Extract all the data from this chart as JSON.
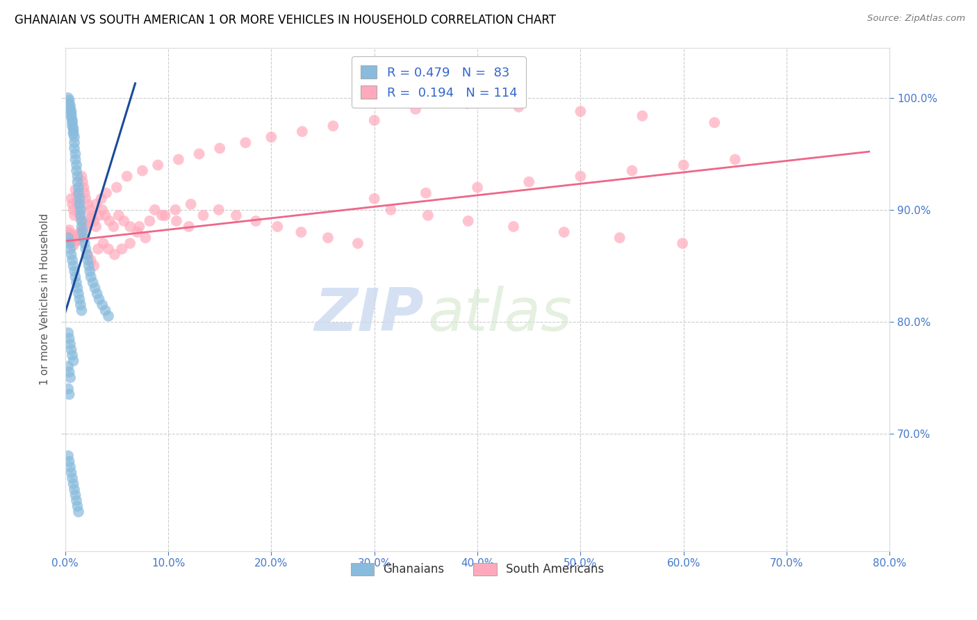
{
  "title": "GHANAIAN VS SOUTH AMERICAN 1 OR MORE VEHICLES IN HOUSEHOLD CORRELATION CHART",
  "source": "Source: ZipAtlas.com",
  "ylabel": "1 or more Vehicles in Household",
  "xlim": [
    0.0,
    0.8
  ],
  "ylim": [
    0.595,
    1.045
  ],
  "xtick_labels": [
    "0.0%",
    "10.0%",
    "20.0%",
    "30.0%",
    "40.0%",
    "50.0%",
    "60.0%",
    "70.0%",
    "80.0%"
  ],
  "xtick_vals": [
    0.0,
    0.1,
    0.2,
    0.3,
    0.4,
    0.5,
    0.6,
    0.7,
    0.8
  ],
  "ytick_labels": [
    "70.0%",
    "80.0%",
    "90.0%",
    "100.0%"
  ],
  "ytick_vals": [
    0.7,
    0.8,
    0.9,
    1.0
  ],
  "blue_R": 0.479,
  "blue_N": 83,
  "pink_R": 0.194,
  "pink_N": 114,
  "blue_color": "#88BBDD",
  "pink_color": "#FFAABC",
  "blue_line_color": "#1A4A9A",
  "pink_line_color": "#EE6688",
  "legend_label_blue": "Ghanaians",
  "legend_label_pink": "South Americans",
  "watermark_zip": "ZIP",
  "watermark_atlas": "atlas",
  "blue_line_x0": 0.0,
  "blue_line_y0": 0.808,
  "blue_line_x1": 0.068,
  "blue_line_y1": 1.013,
  "pink_line_x0": 0.0,
  "pink_line_y0": 0.872,
  "pink_line_x1": 0.78,
  "pink_line_y1": 0.952,
  "blue_x": [
    0.003,
    0.004,
    0.004,
    0.005,
    0.005,
    0.006,
    0.006,
    0.006,
    0.007,
    0.007,
    0.007,
    0.008,
    0.008,
    0.008,
    0.009,
    0.009,
    0.009,
    0.01,
    0.01,
    0.011,
    0.011,
    0.012,
    0.012,
    0.013,
    0.013,
    0.014,
    0.014,
    0.015,
    0.015,
    0.016,
    0.016,
    0.017,
    0.018,
    0.019,
    0.02,
    0.021,
    0.022,
    0.023,
    0.024,
    0.025,
    0.027,
    0.029,
    0.031,
    0.033,
    0.036,
    0.039,
    0.042,
    0.003,
    0.004,
    0.005,
    0.006,
    0.007,
    0.008,
    0.009,
    0.01,
    0.011,
    0.012,
    0.013,
    0.014,
    0.015,
    0.016,
    0.003,
    0.004,
    0.005,
    0.006,
    0.007,
    0.008,
    0.003,
    0.004,
    0.005,
    0.003,
    0.004,
    0.003,
    0.004,
    0.005,
    0.006,
    0.007,
    0.008,
    0.009,
    0.01,
    0.011,
    0.012,
    0.013
  ],
  "blue_y": [
    1.0,
    0.998,
    0.995,
    0.993,
    0.99,
    0.988,
    0.985,
    0.983,
    0.98,
    0.978,
    0.975,
    0.973,
    0.97,
    0.968,
    0.965,
    0.96,
    0.955,
    0.95,
    0.945,
    0.94,
    0.935,
    0.93,
    0.925,
    0.92,
    0.915,
    0.91,
    0.905,
    0.9,
    0.895,
    0.89,
    0.885,
    0.88,
    0.875,
    0.87,
    0.865,
    0.86,
    0.855,
    0.85,
    0.845,
    0.84,
    0.835,
    0.83,
    0.825,
    0.82,
    0.815,
    0.81,
    0.805,
    0.875,
    0.87,
    0.865,
    0.86,
    0.855,
    0.85,
    0.845,
    0.84,
    0.835,
    0.83,
    0.825,
    0.82,
    0.815,
    0.81,
    0.79,
    0.785,
    0.78,
    0.775,
    0.77,
    0.765,
    0.76,
    0.755,
    0.75,
    0.74,
    0.735,
    0.68,
    0.675,
    0.67,
    0.665,
    0.66,
    0.655,
    0.65,
    0.645,
    0.64,
    0.635,
    0.63
  ],
  "pink_x": [
    0.003,
    0.004,
    0.005,
    0.006,
    0.007,
    0.008,
    0.009,
    0.01,
    0.011,
    0.012,
    0.013,
    0.014,
    0.015,
    0.016,
    0.017,
    0.018,
    0.019,
    0.02,
    0.022,
    0.024,
    0.026,
    0.028,
    0.03,
    0.033,
    0.036,
    0.039,
    0.043,
    0.047,
    0.052,
    0.057,
    0.063,
    0.07,
    0.078,
    0.087,
    0.097,
    0.108,
    0.12,
    0.134,
    0.149,
    0.166,
    0.185,
    0.206,
    0.229,
    0.255,
    0.284,
    0.316,
    0.352,
    0.391,
    0.435,
    0.484,
    0.538,
    0.599,
    0.022,
    0.025,
    0.028,
    0.032,
    0.037,
    0.042,
    0.048,
    0.055,
    0.063,
    0.072,
    0.082,
    0.094,
    0.107,
    0.122,
    0.004,
    0.005,
    0.006,
    0.007,
    0.008,
    0.009,
    0.01,
    0.011,
    0.012,
    0.013,
    0.014,
    0.015,
    0.016,
    0.017,
    0.018,
    0.019,
    0.02,
    0.021,
    0.025,
    0.03,
    0.035,
    0.04,
    0.05,
    0.06,
    0.075,
    0.09,
    0.11,
    0.13,
    0.15,
    0.175,
    0.2,
    0.23,
    0.26,
    0.3,
    0.34,
    0.39,
    0.44,
    0.5,
    0.56,
    0.63,
    0.3,
    0.35,
    0.4,
    0.45,
    0.5,
    0.55,
    0.6,
    0.65
  ],
  "pink_y": [
    0.88,
    0.882,
    0.878,
    0.91,
    0.905,
    0.9,
    0.895,
    0.918,
    0.912,
    0.907,
    0.902,
    0.897,
    0.892,
    0.93,
    0.925,
    0.92,
    0.915,
    0.91,
    0.905,
    0.9,
    0.895,
    0.89,
    0.885,
    0.895,
    0.9,
    0.895,
    0.89,
    0.885,
    0.895,
    0.89,
    0.885,
    0.88,
    0.875,
    0.9,
    0.895,
    0.89,
    0.885,
    0.895,
    0.9,
    0.895,
    0.89,
    0.885,
    0.88,
    0.875,
    0.87,
    0.9,
    0.895,
    0.89,
    0.885,
    0.88,
    0.875,
    0.87,
    0.86,
    0.855,
    0.85,
    0.865,
    0.87,
    0.865,
    0.86,
    0.865,
    0.87,
    0.885,
    0.89,
    0.895,
    0.9,
    0.905,
    0.873,
    0.876,
    0.874,
    0.871,
    0.868,
    0.872,
    0.875,
    0.878,
    0.876,
    0.873,
    0.876,
    0.88,
    0.878,
    0.882,
    0.885,
    0.888,
    0.885,
    0.888,
    0.892,
    0.905,
    0.91,
    0.915,
    0.92,
    0.93,
    0.935,
    0.94,
    0.945,
    0.95,
    0.955,
    0.96,
    0.965,
    0.97,
    0.975,
    0.98,
    0.99,
    0.995,
    0.992,
    0.988,
    0.984,
    0.978,
    0.91,
    0.915,
    0.92,
    0.925,
    0.93,
    0.935,
    0.94,
    0.945
  ]
}
